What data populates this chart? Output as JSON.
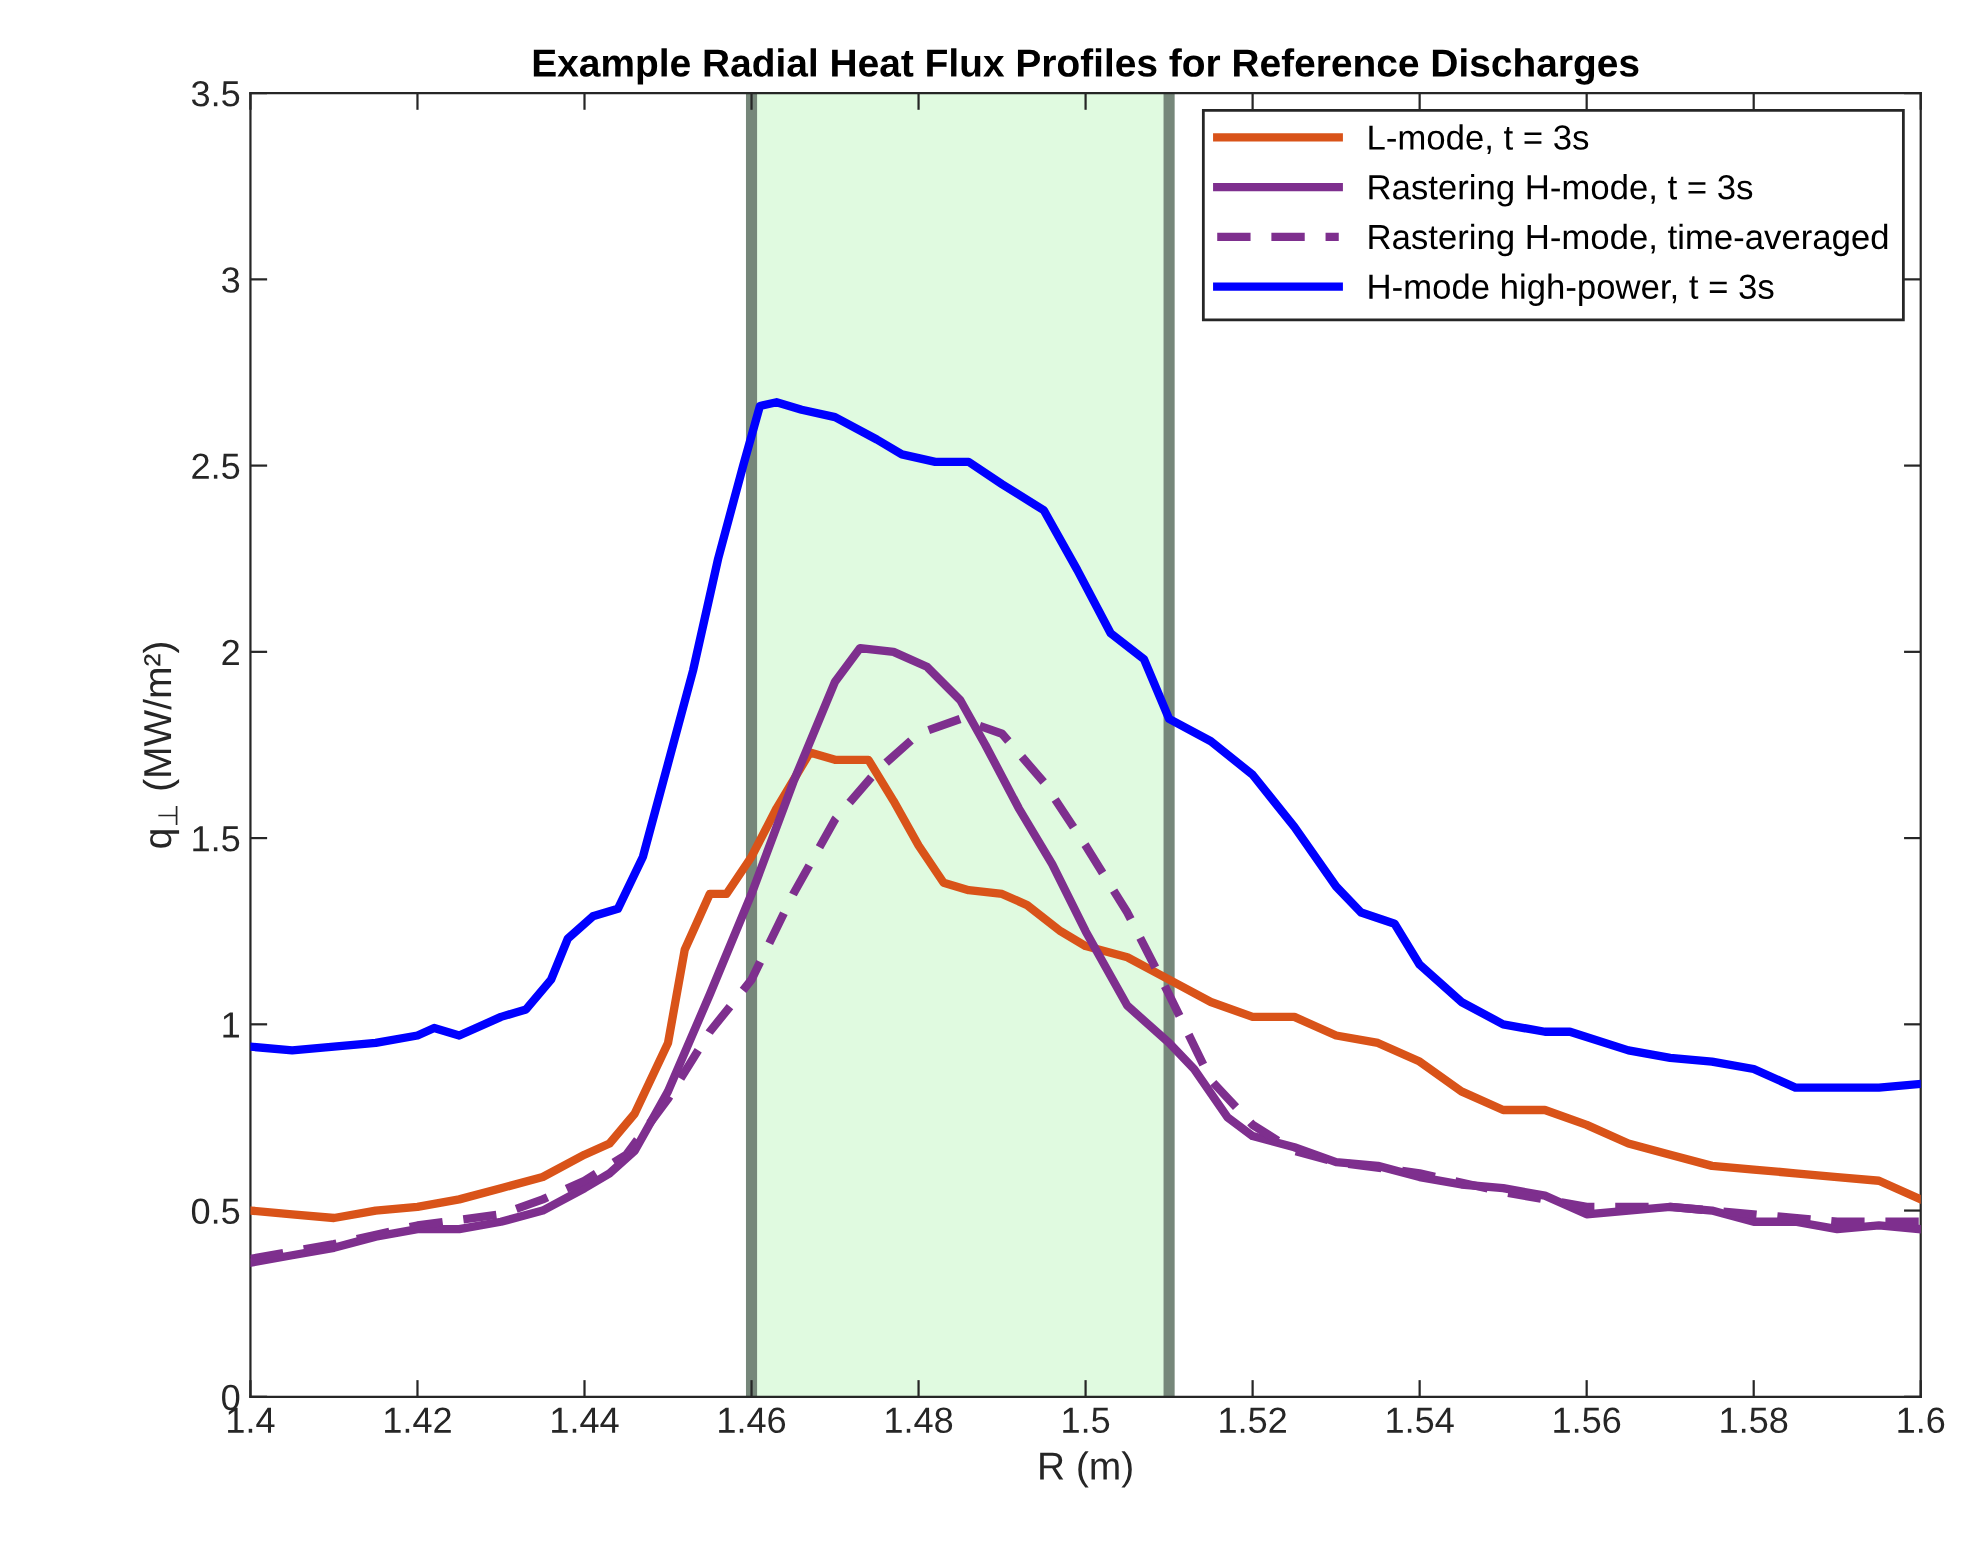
{
  "chart_data": {
    "type": "line",
    "title": "Example Radial Heat Flux Profiles for Reference Discharges",
    "xlabel": "R (m)",
    "ylabel": "q$_{⊥}$ (MW/m²)",
    "xlim": [
      1.4,
      1.6
    ],
    "xticks": [
      1.4,
      1.42,
      1.44,
      1.46,
      1.48,
      1.5,
      1.52,
      1.54,
      1.56,
      1.58,
      1.6
    ],
    "ylim": [
      0,
      3.5
    ],
    "yticks": [
      0,
      0.5,
      1,
      1.5,
      2,
      2.5,
      3,
      3.5
    ],
    "grid": false,
    "legend": "top right",
    "bands": [
      {
        "axis": "x",
        "from": 1.46,
        "to": 1.51,
        "color": "#e0fae0"
      }
    ],
    "ref_lines": [
      {
        "axis": "x",
        "value": 1.46,
        "color": "#76877a"
      },
      {
        "axis": "x",
        "value": 1.51,
        "color": "#76877a"
      }
    ],
    "series": [
      {
        "name": "L-mode, t = 3s",
        "color": "#d95319",
        "line_style": "solid",
        "x": [
          1.4,
          1.405,
          1.41,
          1.415,
          1.42,
          1.425,
          1.43,
          1.435,
          1.44,
          1.443,
          1.446,
          1.45,
          1.452,
          1.455,
          1.457,
          1.46,
          1.463,
          1.467,
          1.47,
          1.474,
          1.477,
          1.48,
          1.483,
          1.486,
          1.49,
          1.493,
          1.497,
          1.5,
          1.505,
          1.51,
          1.515,
          1.52,
          1.525,
          1.53,
          1.535,
          1.54,
          1.545,
          1.55,
          1.555,
          1.56,
          1.565,
          1.57,
          1.575,
          1.58,
          1.585,
          1.59,
          1.595,
          1.6
        ],
        "values": [
          0.5,
          0.49,
          0.48,
          0.5,
          0.51,
          0.53,
          0.56,
          0.59,
          0.65,
          0.68,
          0.76,
          0.95,
          1.2,
          1.35,
          1.35,
          1.45,
          1.58,
          1.73,
          1.71,
          1.71,
          1.6,
          1.48,
          1.38,
          1.36,
          1.35,
          1.32,
          1.25,
          1.21,
          1.18,
          1.12,
          1.06,
          1.02,
          1.02,
          0.97,
          0.95,
          0.9,
          0.82,
          0.77,
          0.77,
          0.73,
          0.68,
          0.65,
          0.62,
          0.61,
          0.6,
          0.59,
          0.58,
          0.53
        ]
      },
      {
        "name": "Rastering H-mode, t = 3s",
        "color": "#7e2f8e",
        "line_style": "solid",
        "x": [
          1.4,
          1.405,
          1.41,
          1.415,
          1.42,
          1.425,
          1.43,
          1.435,
          1.44,
          1.443,
          1.446,
          1.45,
          1.455,
          1.46,
          1.465,
          1.47,
          1.473,
          1.477,
          1.481,
          1.485,
          1.488,
          1.492,
          1.496,
          1.5,
          1.505,
          1.51,
          1.513,
          1.517,
          1.52,
          1.525,
          1.53,
          1.535,
          1.54,
          1.545,
          1.55,
          1.555,
          1.56,
          1.565,
          1.57,
          1.575,
          1.58,
          1.585,
          1.59,
          1.595,
          1.6
        ],
        "values": [
          0.36,
          0.38,
          0.4,
          0.43,
          0.45,
          0.45,
          0.47,
          0.5,
          0.56,
          0.6,
          0.66,
          0.82,
          1.08,
          1.35,
          1.65,
          1.92,
          2.01,
          2.0,
          1.96,
          1.87,
          1.75,
          1.58,
          1.43,
          1.25,
          1.05,
          0.95,
          0.88,
          0.75,
          0.7,
          0.67,
          0.63,
          0.62,
          0.59,
          0.57,
          0.56,
          0.54,
          0.49,
          0.5,
          0.51,
          0.5,
          0.47,
          0.47,
          0.45,
          0.46,
          0.45
        ]
      },
      {
        "name": "Rastering H-mode, time-averaged",
        "color": "#7e2f8e",
        "line_style": "dashed",
        "x": [
          1.4,
          1.41,
          1.42,
          1.43,
          1.435,
          1.44,
          1.445,
          1.45,
          1.455,
          1.46,
          1.465,
          1.47,
          1.475,
          1.48,
          1.485,
          1.49,
          1.495,
          1.5,
          1.505,
          1.51,
          1.515,
          1.52,
          1.525,
          1.53,
          1.54,
          1.55,
          1.56,
          1.57,
          1.58,
          1.59,
          1.6
        ],
        "values": [
          0.37,
          0.41,
          0.46,
          0.49,
          0.53,
          0.58,
          0.65,
          0.8,
          0.98,
          1.12,
          1.35,
          1.55,
          1.68,
          1.78,
          1.82,
          1.78,
          1.65,
          1.48,
          1.3,
          1.08,
          0.85,
          0.73,
          0.66,
          0.63,
          0.6,
          0.55,
          0.51,
          0.51,
          0.49,
          0.47,
          0.47
        ]
      },
      {
        "name": "H-mode high-power, t = 3s",
        "color": "#0000ff",
        "line_style": "solid",
        "x": [
          1.4,
          1.405,
          1.41,
          1.415,
          1.42,
          1.422,
          1.425,
          1.43,
          1.433,
          1.436,
          1.438,
          1.441,
          1.444,
          1.447,
          1.45,
          1.453,
          1.456,
          1.459,
          1.461,
          1.463,
          1.466,
          1.47,
          1.475,
          1.478,
          1.482,
          1.486,
          1.49,
          1.495,
          1.499,
          1.503,
          1.507,
          1.51,
          1.515,
          1.52,
          1.525,
          1.53,
          1.533,
          1.537,
          1.54,
          1.545,
          1.55,
          1.555,
          1.558,
          1.565,
          1.57,
          1.575,
          1.58,
          1.585,
          1.59,
          1.595,
          1.6
        ],
        "values": [
          0.94,
          0.93,
          0.94,
          0.95,
          0.97,
          0.99,
          0.97,
          1.02,
          1.04,
          1.12,
          1.23,
          1.29,
          1.31,
          1.45,
          1.7,
          1.95,
          2.25,
          2.5,
          2.66,
          2.67,
          2.65,
          2.63,
          2.57,
          2.53,
          2.51,
          2.51,
          2.45,
          2.38,
          2.22,
          2.05,
          1.98,
          1.82,
          1.76,
          1.67,
          1.53,
          1.37,
          1.3,
          1.27,
          1.16,
          1.06,
          1.0,
          0.98,
          0.98,
          0.93,
          0.91,
          0.9,
          0.88,
          0.83,
          0.83,
          0.83,
          0.84
        ]
      }
    ]
  }
}
